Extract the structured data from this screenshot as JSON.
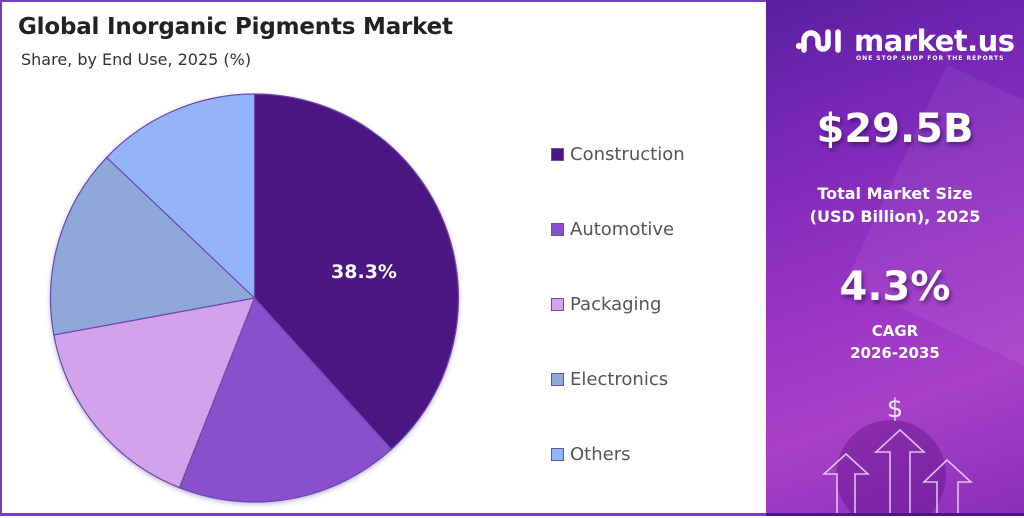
{
  "header": {
    "title": "Global Inorganic Pigments Market",
    "subtitle": "Share, by End Use, 2025 (%)"
  },
  "pie": {
    "highlight_label": "38.3%"
  },
  "legend": {
    "items": [
      {
        "label": "Construction",
        "color": "#4b1682"
      },
      {
        "label": "Automotive",
        "color": "#8a4fcc"
      },
      {
        "label": "Packaging",
        "color": "#d2a3ea"
      },
      {
        "label": "Electronics",
        "color": "#8ea8da"
      },
      {
        "label": "Others",
        "color": "#94b4fa"
      }
    ]
  },
  "brand": {
    "name": "market.us",
    "tagline": "ONE STOP SHOP FOR THE REPORTS"
  },
  "stats": {
    "market_size_value": "$29.5B",
    "market_size_caption_line1": "Total Market Size",
    "market_size_caption_line2": "(USD Billion), 2025",
    "cagr_value": "4.3%",
    "cagr_caption_line1": "CAGR",
    "cagr_caption_line2": "2026-2035"
  },
  "icons": {
    "dollar": "$"
  },
  "chart_data": {
    "type": "pie",
    "title": "Global Inorganic Pigments Market",
    "subtitle": "Share, by End Use, 2025 (%)",
    "categories": [
      "Construction",
      "Automotive",
      "Packaging",
      "Electronics",
      "Others"
    ],
    "values": [
      38.3,
      17.7,
      16.1,
      15.0,
      12.9
    ],
    "colors": [
      "#4b1682",
      "#8a4fcc",
      "#d2a3ea",
      "#8ea8da",
      "#94b4fa"
    ],
    "data_labels": {
      "Construction": "38.3%"
    },
    "start_angle": "12 o'clock, clockwise",
    "legend_position": "right",
    "unit": "%"
  }
}
